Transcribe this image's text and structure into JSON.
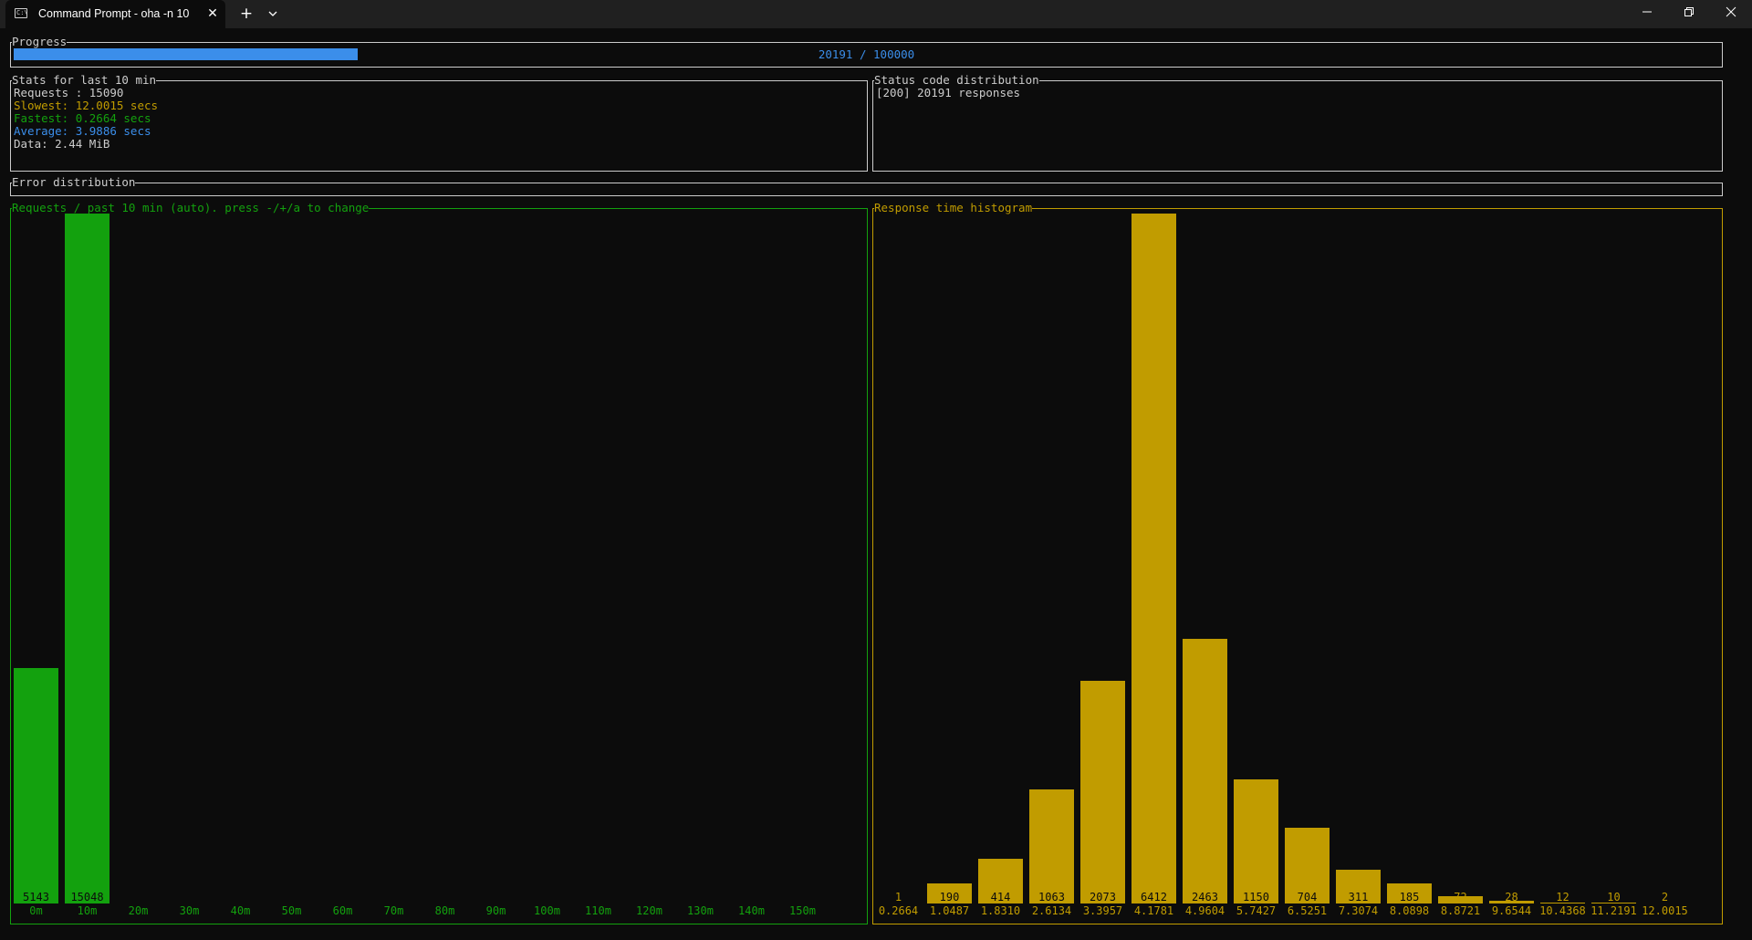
{
  "window": {
    "tab_title": "Command Prompt - oha  -n 10",
    "tab_icon": "terminal-icon",
    "close_tab_icon": "close-icon",
    "new_tab_icon": "plus-icon",
    "dropdown_icon": "chevron-down-icon",
    "controls": [
      "minimize-icon",
      "restore-icon",
      "close-icon"
    ]
  },
  "progress": {
    "title": "Progress",
    "current": 20191,
    "total": 100000,
    "text": "20191 / 100000",
    "fraction": 0.20191,
    "color": "#3b8eea"
  },
  "stats": {
    "title": "Stats for last 10 min",
    "requests": "Requests : 15090",
    "slowest": "Slowest: 12.0015 secs",
    "fastest": "Fastest: 0.2664 secs",
    "average": "Average: 3.9886 secs",
    "data": "Data: 2.44 MiB"
  },
  "status_codes": {
    "title": "Status code distribution",
    "lines": [
      "[200] 20191 responses"
    ]
  },
  "errors": {
    "title": "Error distribution"
  },
  "requests_chart": {
    "title": "Requests / past 10 min (auto). press -/+/a to change",
    "color": "#13a10e",
    "chart_data": {
      "type": "bar",
      "categories": [
        "0m",
        "10m",
        "20m",
        "30m",
        "40m",
        "50m",
        "60m",
        "70m",
        "80m",
        "90m",
        "100m",
        "110m",
        "120m",
        "130m",
        "140m",
        "150m"
      ],
      "values": [
        5143,
        15048,
        0,
        0,
        0,
        0,
        0,
        0,
        0,
        0,
        0,
        0,
        0,
        0,
        0,
        0
      ],
      "ylim": [
        0,
        15048
      ]
    }
  },
  "histogram": {
    "title": "Response time histogram",
    "color": "#c19c00",
    "chart_data": {
      "type": "bar",
      "categories": [
        "0.2664",
        "1.0487",
        "1.8310",
        "2.6134",
        "3.3957",
        "4.1781",
        "4.9604",
        "5.7427",
        "6.5251",
        "7.3074",
        "8.0898",
        "8.8721",
        "9.6544",
        "10.4368",
        "11.2191",
        "12.0015"
      ],
      "values": [
        1,
        190,
        414,
        1063,
        2073,
        6412,
        2463,
        1150,
        704,
        311,
        185,
        72,
        28,
        12,
        10,
        2
      ],
      "ylim": [
        0,
        6412
      ]
    }
  },
  "colors": {
    "background": "#0c0c0c",
    "text": "#cccccc",
    "slowest": "#c19c00",
    "fastest": "#13a10e",
    "average": "#3b8eea"
  }
}
